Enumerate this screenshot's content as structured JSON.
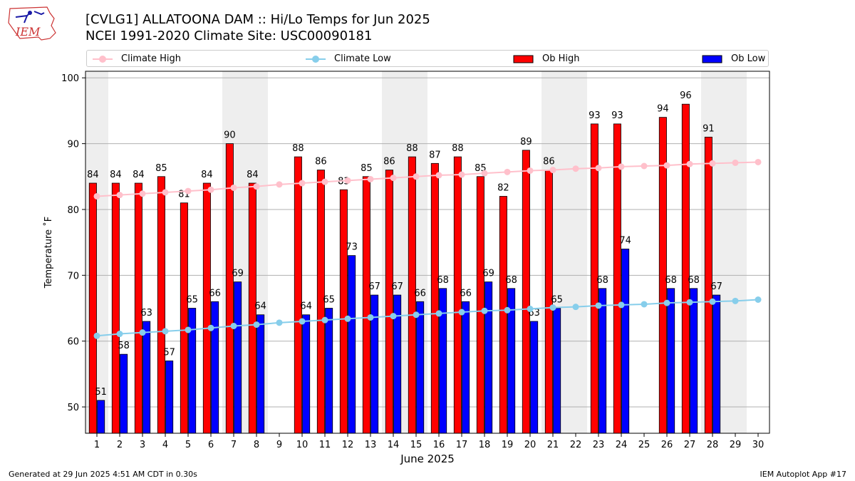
{
  "logo": {
    "text": "IEM"
  },
  "header": {
    "title": "[CVLG1] ALLATOONA DAM :: Hi/Lo Temps for Jun 2025",
    "subtitle": "NCEI 1991-2020 Climate Site: USC00090181"
  },
  "footer": {
    "generated": "Generated at 29 Jun 2025 4:51 AM CDT in 0.30s",
    "app": "IEM Autoplot App #17"
  },
  "colors": {
    "ob_high": "#ff0000",
    "ob_low": "#0000ff",
    "climate_high": "#ffc0cb",
    "climate_low": "#87ceeb",
    "weekend_shade": "#eeeeee",
    "grid": "#b0b0b0"
  },
  "chart_data": {
    "type": "bar",
    "xlabel": "June 2025",
    "ylabel": "Temperature ˚F",
    "ylim": [
      46,
      101
    ],
    "yticks": [
      50,
      60,
      70,
      80,
      90,
      100
    ],
    "grid": "horizontal",
    "legend_position": "top",
    "categories": [
      "1",
      "2",
      "3",
      "4",
      "5",
      "6",
      "7",
      "8",
      "9",
      "10",
      "11",
      "12",
      "13",
      "14",
      "15",
      "16",
      "17",
      "18",
      "19",
      "20",
      "21",
      "22",
      "23",
      "24",
      "25",
      "26",
      "27",
      "28",
      "29",
      "30"
    ],
    "shaded_weekend_days": [
      1,
      7,
      8,
      14,
      15,
      21,
      22,
      28,
      29
    ],
    "series": [
      {
        "name": "Climate High",
        "kind": "line",
        "values": [
          82.0,
          82.2,
          82.4,
          82.6,
          82.8,
          83.0,
          83.3,
          83.5,
          83.8,
          84.0,
          84.2,
          84.4,
          84.6,
          84.8,
          85.0,
          85.2,
          85.3,
          85.5,
          85.7,
          85.9,
          86.0,
          86.2,
          86.3,
          86.5,
          86.6,
          86.7,
          86.9,
          87.0,
          87.1,
          87.2
        ]
      },
      {
        "name": "Climate Low",
        "kind": "line",
        "values": [
          60.8,
          61.1,
          61.3,
          61.5,
          61.7,
          62.0,
          62.3,
          62.5,
          62.8,
          63.0,
          63.2,
          63.4,
          63.6,
          63.8,
          64.0,
          64.2,
          64.4,
          64.6,
          64.7,
          64.9,
          65.1,
          65.2,
          65.4,
          65.5,
          65.6,
          65.8,
          65.9,
          66.0,
          66.1,
          66.3
        ]
      },
      {
        "name": "Ob High",
        "kind": "bar",
        "values": [
          84,
          84,
          84,
          85,
          81,
          84,
          90,
          84,
          null,
          88,
          86,
          83,
          85,
          86,
          88,
          87,
          88,
          85,
          82,
          89,
          86,
          null,
          93,
          93,
          null,
          94,
          96,
          91,
          null,
          null
        ]
      },
      {
        "name": "Ob Low",
        "kind": "bar",
        "values": [
          51,
          58,
          63,
          57,
          65,
          66,
          69,
          64,
          null,
          64,
          65,
          73,
          67,
          67,
          66,
          68,
          66,
          69,
          68,
          63,
          65,
          null,
          68,
          74,
          null,
          68,
          68,
          67,
          null,
          null
        ]
      }
    ]
  }
}
